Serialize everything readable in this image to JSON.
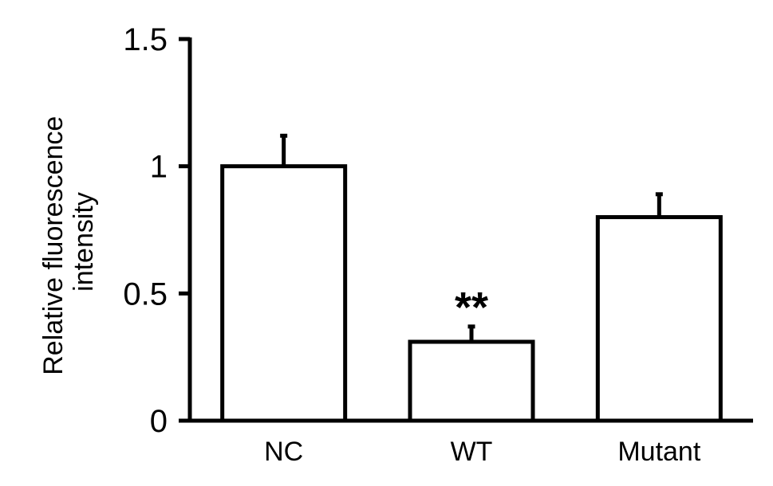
{
  "chart_data": {
    "type": "bar",
    "title": "",
    "xlabel": "",
    "ylabel": [
      "Relative fluorescence",
      "intensity"
    ],
    "categories": [
      "NC",
      "WT",
      "Mutant"
    ],
    "values": [
      1.0,
      0.31,
      0.8
    ],
    "error_upper": [
      0.12,
      0.06,
      0.09
    ],
    "ylim": [
      0,
      1.5
    ],
    "yticks": [
      0,
      0.5,
      1,
      1.5
    ],
    "ytick_labels": [
      "0",
      "0.5",
      "1",
      "1.5"
    ],
    "annotations": [
      {
        "category": "WT",
        "text": "**"
      }
    ],
    "grid": false,
    "legend": "none",
    "bar_fill": "#ffffff",
    "bar_stroke": "#000000"
  }
}
